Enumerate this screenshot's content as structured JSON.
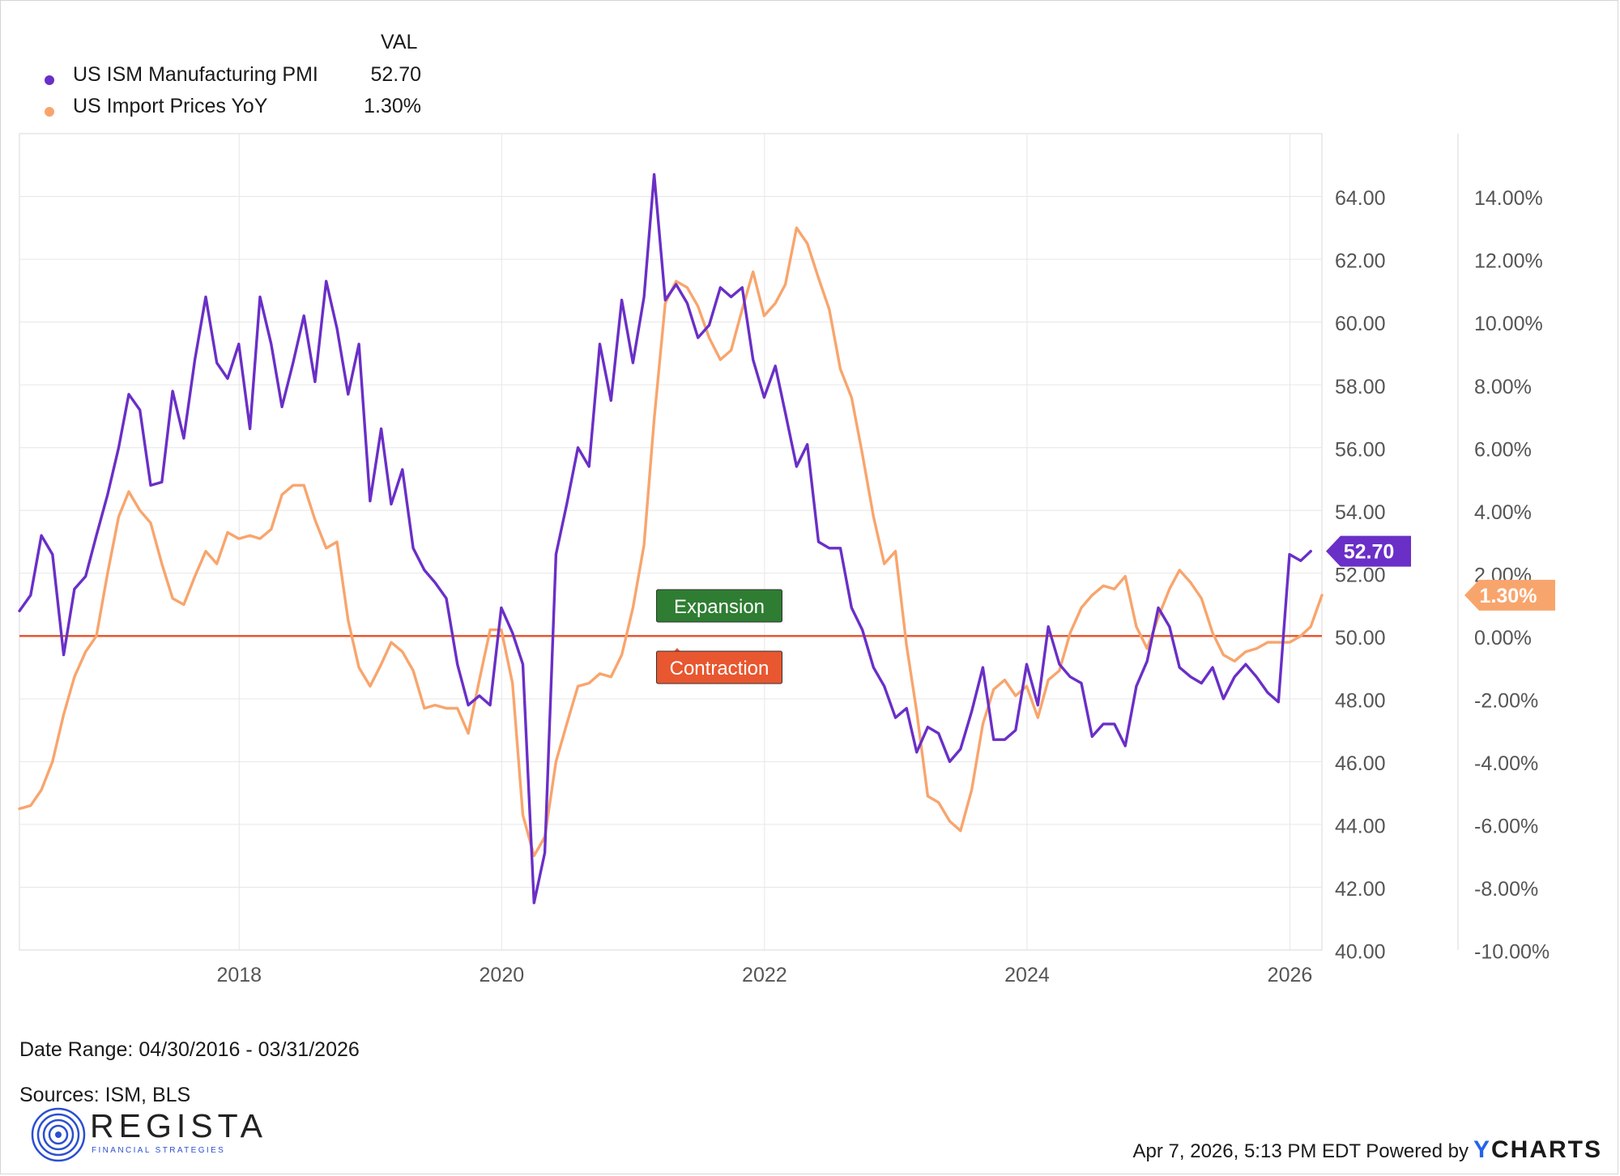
{
  "legend": {
    "header": "VAL",
    "items": [
      {
        "name": "US ISM Manufacturing PMI",
        "value": "52.70",
        "color": "#6a2fc7"
      },
      {
        "name": "US Import Prices YoY",
        "value": "1.30%",
        "color": "#f8a56d"
      }
    ]
  },
  "footer": {
    "date_range": "Date Range: 04/30/2016 - 03/31/2026",
    "sources": "Sources: ISM, BLS",
    "timestamp": "Apr 7, 2026, 5:13 PM EDT Powered by",
    "brand": "YCHARTS"
  },
  "logo": {
    "name": "REGISTA",
    "tagline": "FINANCIAL STRATEGIES",
    "color": "#2b4fd1"
  },
  "chart_data": {
    "type": "line",
    "x_axis": {
      "range": [
        "2016-04-30",
        "2026-03-31"
      ],
      "ticks": [
        "2018",
        "2020",
        "2022",
        "2024",
        "2026"
      ]
    },
    "y_left": {
      "range": [
        40,
        66
      ],
      "ticks": [
        "40.00",
        "42.00",
        "44.00",
        "46.00",
        "48.00",
        "50.00",
        "52.00",
        "54.00",
        "56.00",
        "58.00",
        "60.00",
        "62.00",
        "64.00"
      ]
    },
    "y_right": {
      "range": [
        -10,
        16
      ],
      "ticks": [
        "-10.00%",
        "-8.00%",
        "-6.00%",
        "-4.00%",
        "-2.00%",
        "0.00%",
        "2.00%",
        "4.00%",
        "6.00%",
        "8.00%",
        "10.00%",
        "12.00%",
        "14.00%"
      ]
    },
    "grid": true,
    "legend_position": "top-left",
    "annotations": [
      {
        "text": "Expansion",
        "color": "#2e7d32"
      },
      {
        "text": "Contraction",
        "color": "#e8572f"
      }
    ],
    "threshold": {
      "value": 50,
      "color": "#e8572f"
    },
    "end_labels": [
      "52.70",
      "1.30%"
    ],
    "series": [
      {
        "name": "US ISM Manufacturing PMI",
        "axis": "left",
        "color": "#6a2fc7",
        "start": "2016-04",
        "values": [
          50.8,
          51.3,
          53.2,
          52.6,
          49.4,
          51.5,
          51.9,
          53.2,
          54.5,
          56.0,
          57.7,
          57.2,
          54.8,
          54.9,
          57.8,
          56.3,
          58.8,
          60.8,
          58.7,
          58.2,
          59.3,
          56.6,
          60.8,
          59.3,
          57.3,
          58.7,
          60.2,
          58.1,
          61.3,
          59.8,
          57.7,
          59.3,
          54.3,
          56.6,
          54.2,
          55.3,
          52.8,
          52.1,
          51.7,
          51.2,
          49.1,
          47.8,
          48.1,
          47.8,
          50.9,
          50.1,
          49.1,
          41.5,
          43.1,
          52.6,
          54.2,
          56.0,
          55.4,
          59.3,
          57.5,
          60.7,
          58.7,
          60.8,
          64.7,
          60.7,
          61.2,
          60.6,
          59.5,
          59.9,
          61.1,
          60.8,
          61.1,
          58.8,
          57.6,
          58.6,
          57.1,
          55.4,
          56.1,
          53.0,
          52.8,
          52.8,
          50.9,
          50.2,
          49.0,
          48.4,
          47.4,
          47.7,
          46.3,
          47.1,
          46.9,
          46.0,
          46.4,
          47.6,
          49.0,
          46.7,
          46.7,
          47.0,
          49.1,
          47.8,
          50.3,
          49.1,
          48.7,
          48.5,
          46.8,
          47.2,
          47.2,
          46.5,
          48.4,
          49.2,
          50.9,
          50.3,
          49.0,
          48.7,
          48.5,
          49.0,
          48.0,
          48.7,
          49.1,
          48.7,
          48.2,
          47.9,
          52.6,
          52.4,
          52.7
        ]
      },
      {
        "name": "US Import Prices YoY",
        "axis": "right",
        "color": "#f8a56d",
        "start": "2016-04",
        "values": [
          -5.5,
          -5.4,
          -4.9,
          -4.0,
          -2.5,
          -1.3,
          -0.5,
          0.0,
          2.0,
          3.8,
          4.6,
          4.0,
          3.6,
          2.3,
          1.2,
          1.0,
          1.9,
          2.7,
          2.3,
          3.3,
          3.1,
          3.2,
          3.1,
          3.4,
          4.5,
          4.8,
          4.8,
          3.7,
          2.8,
          3.0,
          0.5,
          -1.0,
          -1.6,
          -0.9,
          -0.2,
          -0.5,
          -1.1,
          -2.3,
          -2.2,
          -2.3,
          -2.3,
          -3.1,
          -1.4,
          0.2,
          0.2,
          -1.5,
          -5.7,
          -7.0,
          -6.4,
          -4.0,
          -2.8,
          -1.6,
          -1.5,
          -1.2,
          -1.3,
          -0.6,
          0.9,
          2.9,
          6.9,
          10.6,
          11.3,
          11.1,
          10.5,
          9.5,
          8.8,
          9.1,
          10.4,
          11.6,
          10.2,
          10.6,
          11.2,
          13.0,
          12.5,
          11.4,
          10.4,
          8.5,
          7.6,
          5.8,
          3.8,
          2.3,
          2.7,
          -0.3,
          -2.4,
          -5.1,
          -5.3,
          -5.9,
          -6.2,
          -4.9,
          -2.8,
          -1.7,
          -1.4,
          -1.9,
          -1.6,
          -2.6,
          -1.4,
          -1.1,
          0.1,
          0.9,
          1.3,
          1.6,
          1.5,
          1.9,
          0.3,
          -0.4,
          0.6,
          1.5,
          2.1,
          1.7,
          1.2,
          0.1,
          -0.6,
          -0.8,
          -0.5,
          -0.4,
          -0.2,
          -0.2,
          -0.2,
          0.0,
          0.3,
          1.3
        ]
      }
    ]
  }
}
